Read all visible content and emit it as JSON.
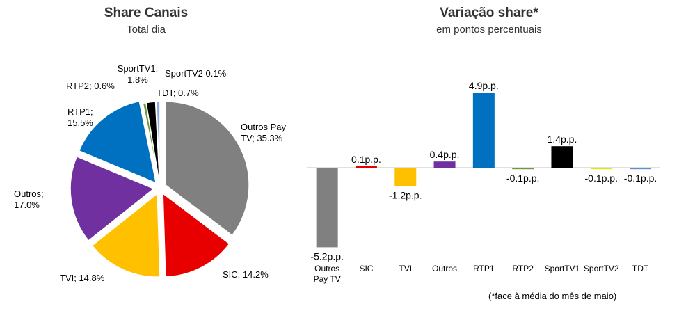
{
  "colors": {
    "outros_pay_tv": "#808080",
    "sic": "#e80000",
    "tvi": "#ffc000",
    "outros": "#7030a0",
    "rtp1": "#0070c0",
    "rtp2": "#6a9a3a",
    "sporttv1": "#000000",
    "sporttv2": "#e6e600",
    "tdt": "#5b8fd0"
  },
  "chart_data": [
    {
      "type": "pie",
      "title": "Share Canais",
      "subtitle": "Total dia",
      "slices": [
        {
          "name": "Outros Pay TV",
          "value": 35.3,
          "label_lines": [
            "Outros Pay",
            "TV; 35.3%"
          ],
          "color": "#808080"
        },
        {
          "name": "SIC",
          "value": 14.2,
          "label_lines": [
            "SIC; 14.2%"
          ],
          "color": "#e80000"
        },
        {
          "name": "TVI",
          "value": 14.8,
          "label_lines": [
            "TVI; 14.8%"
          ],
          "color": "#ffc000"
        },
        {
          "name": "Outros",
          "value": 17.0,
          "label_lines": [
            "Outros;",
            "17.0%"
          ],
          "color": "#7030a0"
        },
        {
          "name": "RTP1",
          "value": 15.5,
          "label_lines": [
            "RTP1;",
            "15.5%"
          ],
          "color": "#0070c0"
        },
        {
          "name": "RTP2",
          "value": 0.6,
          "label_lines": [
            "RTP2; 0.6%"
          ],
          "color": "#6a9a3a"
        },
        {
          "name": "SportTV1",
          "value": 1.8,
          "label_lines": [
            "SportTV1;",
            "1.8%"
          ],
          "color": "#000000"
        },
        {
          "name": "SportTV2",
          "value": 0.1,
          "label_lines": [
            "SportTV2 0.1%"
          ],
          "color": "#e6e600"
        },
        {
          "name": "TDT",
          "value": 0.7,
          "label_lines": [
            "TDT; 0.7%"
          ],
          "color": "#8faadc"
        }
      ]
    },
    {
      "type": "bar",
      "title": "Variação share*",
      "subtitle": "em pontos percentuais",
      "categories": [
        [
          "Outros",
          "Pay TV"
        ],
        [
          "SIC"
        ],
        [
          "TVI"
        ],
        [
          "Outros"
        ],
        [
          "RTP1"
        ],
        [
          "RTP2"
        ],
        [
          "SportTV1"
        ],
        [
          "SportTV2"
        ],
        [
          "TDT"
        ]
      ],
      "values": [
        -5.2,
        0.1,
        -1.2,
        0.4,
        4.9,
        -0.1,
        1.4,
        -0.1,
        -0.1
      ],
      "value_labels": [
        "-5.2p.p.",
        "0.1p.p.",
        "-1.2p.p.",
        "0.4p.p.",
        "4.9p.p.",
        "-0.1p.p.",
        "1.4p.p.",
        "-0.1p.p.",
        "-0.1p.p."
      ],
      "colors": [
        "#808080",
        "#e80000",
        "#ffc000",
        "#7030a0",
        "#0070c0",
        "#6a9a3a",
        "#000000",
        "#e6e600",
        "#5b8fd0"
      ],
      "ylim": [
        -5.2,
        4.9
      ],
      "footnote": "(*face à média do mês de maio)"
    }
  ]
}
